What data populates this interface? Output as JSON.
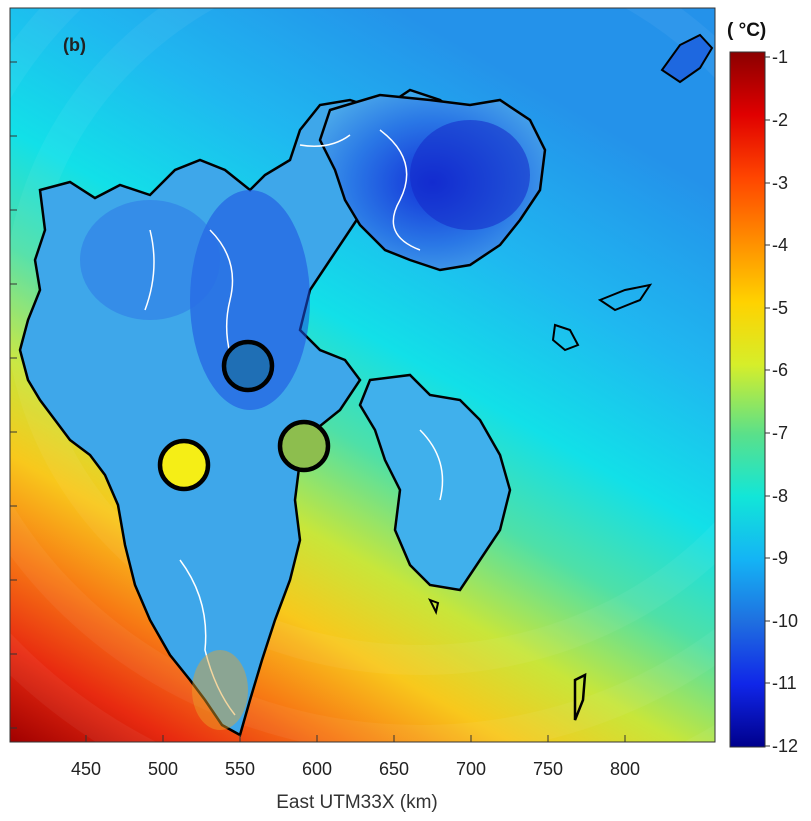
{
  "panel_label": "(b)",
  "colorbar": {
    "unit": "( °C)",
    "ticks": [
      "-1",
      "-2",
      "-3",
      "-4",
      "-5",
      "-6",
      "-7",
      "-8",
      "-9",
      "-10",
      "-11",
      "-12"
    ],
    "range": [
      -12,
      -1
    ]
  },
  "x_axis": {
    "title": "East UTM33X (km)",
    "ticks": [
      "450",
      "500",
      "550",
      "600",
      "650",
      "700",
      "750",
      "800"
    ]
  },
  "markers": [
    {
      "name": "blue-station",
      "color": "#1f6fb5"
    },
    {
      "name": "yellow-station",
      "color": "#f5ee16"
    },
    {
      "name": "green-station",
      "color": "#8dbe4e"
    }
  ],
  "chart_data": {
    "type": "heatmap",
    "xlabel": "East UTM33X (km)",
    "x_ticks": [
      450,
      500,
      550,
      600,
      650,
      700,
      750,
      800
    ],
    "colorbar_range": [
      -12,
      -1
    ],
    "colorbar_unit": "°C",
    "markers": [
      {
        "x": 553,
        "value_color": "#1f6fb5"
      },
      {
        "x": 512,
        "value_color": "#f5ee16"
      },
      {
        "x": 588,
        "value_color": "#8dbe4e"
      }
    ]
  }
}
